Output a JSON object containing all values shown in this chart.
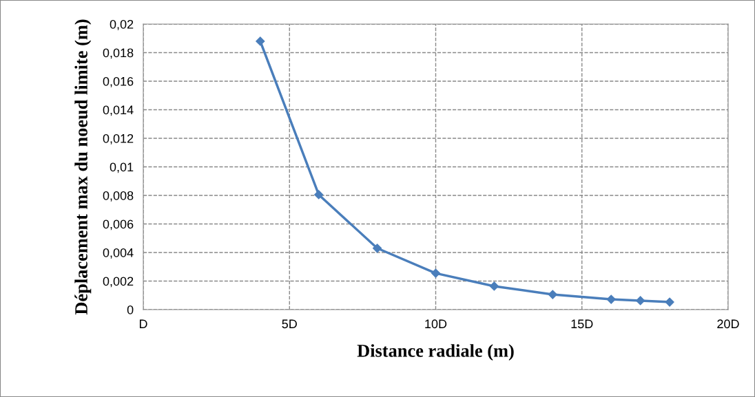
{
  "chart_data": {
    "type": "line",
    "xlabel": "Distance radiale (m)",
    "ylabel": "Déplacement max du noeud limite (m)",
    "x": [
      4,
      6,
      8,
      10,
      12,
      14,
      16,
      17,
      18
    ],
    "series": [
      {
        "color": "#4a7ebb",
        "values": [
          0.0188,
          0.00805,
          0.0043,
          0.00255,
          0.00164,
          0.00106,
          0.00072,
          0.00063,
          0.00053
        ]
      }
    ],
    "xlim": [
      0,
      20
    ],
    "xticks": [
      {
        "value": 0,
        "label": "D"
      },
      {
        "value": 5,
        "label": "5D"
      },
      {
        "value": 10,
        "label": "10D"
      },
      {
        "value": 15,
        "label": "15D"
      },
      {
        "value": 20,
        "label": "20D"
      }
    ],
    "ylim": [
      0,
      0.02
    ],
    "yticks": [
      {
        "value": 0,
        "label": "0"
      },
      {
        "value": 0.002,
        "label": "0,002"
      },
      {
        "value": 0.004,
        "label": "0,004"
      },
      {
        "value": 0.006,
        "label": "0,006"
      },
      {
        "value": 0.008,
        "label": "0,008"
      },
      {
        "value": 0.01,
        "label": "0,01"
      },
      {
        "value": 0.012,
        "label": "0,012"
      },
      {
        "value": 0.014,
        "label": "0,014"
      },
      {
        "value": 0.016,
        "label": "0,016"
      },
      {
        "value": 0.018,
        "label": "0,018"
      },
      {
        "value": 0.02,
        "label": "0,02"
      }
    ],
    "grid": true,
    "marker": "diamond",
    "line_style": "solid"
  }
}
